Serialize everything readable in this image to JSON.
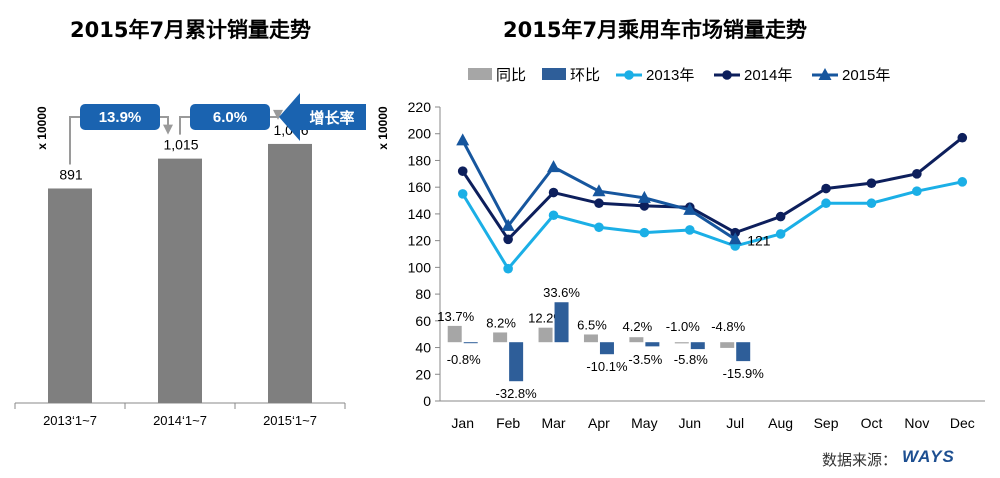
{
  "left_title": "2015年7月累计销量走势",
  "right_title": "2015年7月乘用车市场销量走势",
  "source": {
    "label": "数据来源：",
    "logo": "WAYS"
  },
  "chart_data": [
    {
      "type": "bar",
      "title": "2015年7月累计销量走势",
      "ylabel": "x 10000",
      "ylim": [
        0,
        1300
      ],
      "categories": [
        "2013‘1~7",
        "2014‘1~7",
        "2015‘1~7"
      ],
      "values": [
        891,
        1015,
        1076
      ],
      "value_labels": [
        "891",
        "1,015",
        "1,076"
      ],
      "growth_badges": [
        "13.9%",
        "6.0%"
      ],
      "growth_arrow_label": "增长率",
      "colors": {
        "bar": "#7f7f7f",
        "badge": "#1a63b0",
        "connector": "#9a9a9a"
      }
    },
    {
      "type": "bar+line",
      "title": "2015年7月乘用车市场销量走势",
      "ylabel": "x 10000",
      "ylim": [
        0,
        220
      ],
      "yticks": [
        0,
        20,
        40,
        60,
        80,
        100,
        120,
        140,
        160,
        180,
        200,
        220
      ],
      "categories": [
        "Jan",
        "Feb",
        "Mar",
        "Apr",
        "May",
        "Jun",
        "Jul",
        "Aug",
        "Sep",
        "Oct",
        "Nov",
        "Dec"
      ],
      "bar_base": 44,
      "bar_scale_per_percent": 0.89,
      "bar_series": [
        {
          "name": "同比",
          "color": "#a6a6a6",
          "values": [
            13.7,
            8.2,
            12.2,
            6.5,
            4.2,
            -1.0,
            -4.8
          ],
          "labels": [
            "13.7%",
            "8.2%",
            "12.2%",
            "6.5%",
            "4.2%",
            "-1.0%",
            "-4.8%"
          ]
        },
        {
          "name": "环比",
          "color": "#2e5e99",
          "values": [
            -0.8,
            -32.8,
            33.6,
            -10.1,
            -3.5,
            -5.8,
            -15.9
          ],
          "labels": [
            "-0.8%",
            "-32.8%",
            "33.6%",
            "-10.1%",
            "-3.5%",
            "-5.8%",
            "-15.9%"
          ]
        }
      ],
      "line_series": [
        {
          "name": "2013年",
          "color": "#1bafe6",
          "marker": "circle",
          "values": [
            155,
            99,
            139,
            130,
            126,
            128,
            116,
            125,
            148,
            148,
            157,
            164
          ]
        },
        {
          "name": "2014年",
          "color": "#0d1f5c",
          "marker": "circle",
          "values": [
            172,
            121,
            156,
            148,
            146,
            145,
            126,
            138,
            159,
            163,
            170,
            197
          ]
        },
        {
          "name": "2015年",
          "color": "#16569e",
          "marker": "triangle",
          "values": [
            195,
            131,
            175,
            157,
            152,
            143,
            121
          ]
        }
      ],
      "annotation": "121"
    }
  ]
}
